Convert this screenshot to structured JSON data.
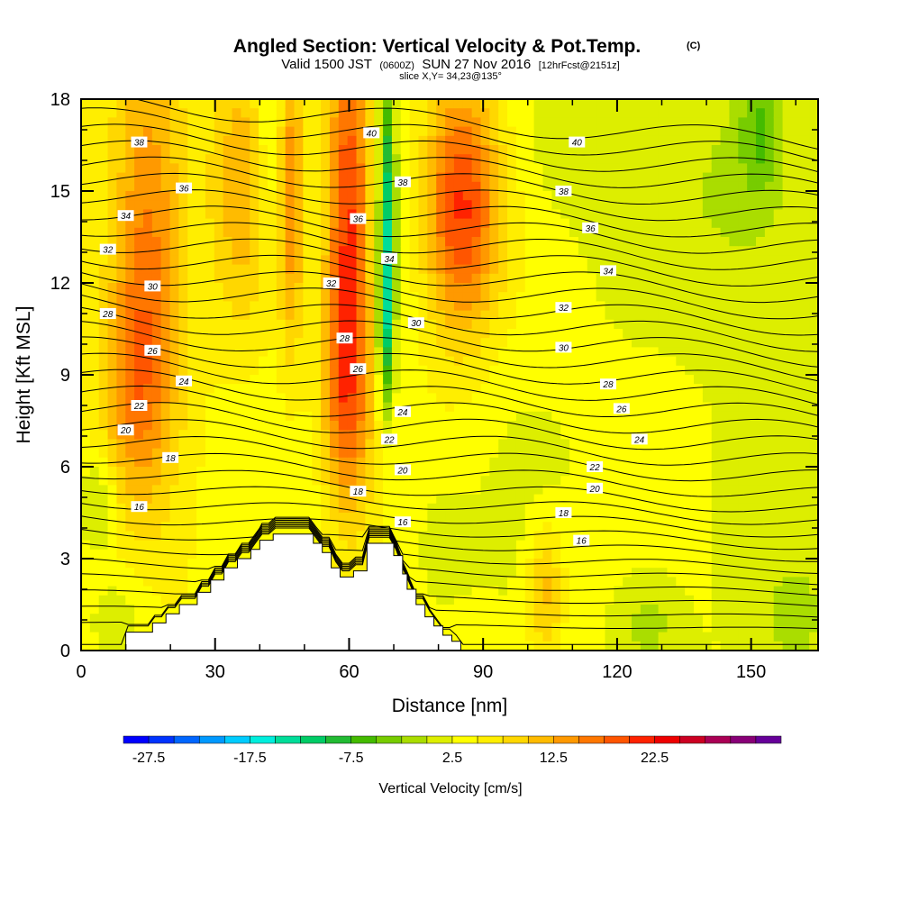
{
  "chart_data": {
    "type": "heatmap",
    "title": "Angled Section: Vertical Velocity & Pot.Temp.",
    "title_unit": "(C)",
    "subtitle": {
      "valid": "Valid 1500 JST",
      "utc": "(0600Z)",
      "date": "SUN 27 Nov 2016",
      "forecast": "[12hrFcst@2151z]"
    },
    "slice_text": "slice X,Y= 34,23@135°",
    "xlabel": "Distance [nm]",
    "ylabel": "Height [Kft MSL]",
    "xlim": [
      0,
      165
    ],
    "ylim": [
      0,
      18
    ],
    "x_ticks": [
      0,
      30,
      60,
      90,
      120,
      150
    ],
    "y_ticks": [
      0,
      3,
      6,
      9,
      12,
      15,
      18
    ],
    "colorbar": {
      "label": "Vertical Velocity [cm/s]",
      "min": -30,
      "step": 2.5,
      "tick_labels": [
        "-27.5",
        "-17.5",
        "-7.5",
        "2.5",
        "12.5",
        "22.5"
      ],
      "colors": [
        "#0000ff",
        "#0033ff",
        "#0066ff",
        "#0099ff",
        "#00ccff",
        "#00eedd",
        "#00dd99",
        "#00cc66",
        "#22bb33",
        "#44bb00",
        "#77cc00",
        "#aadd00",
        "#ddee00",
        "#ffff00",
        "#ffee00",
        "#ffd700",
        "#ffbb00",
        "#ff9900",
        "#ff7700",
        "#ff5500",
        "#ff2200",
        "#ee0000",
        "#cc0022",
        "#aa0055",
        "#880077",
        "#660099"
      ]
    },
    "terrain": [
      [
        0,
        0
      ],
      [
        10,
        0
      ],
      [
        10,
        0.6
      ],
      [
        16,
        0.6
      ],
      [
        16,
        0.9
      ],
      [
        19,
        0.9
      ],
      [
        19,
        1.2
      ],
      [
        22,
        1.2
      ],
      [
        22,
        1.5
      ],
      [
        26,
        1.5
      ],
      [
        26,
        1.9
      ],
      [
        29,
        1.9
      ],
      [
        29,
        2.3
      ],
      [
        32,
        2.3
      ],
      [
        32,
        2.7
      ],
      [
        35,
        2.7
      ],
      [
        35,
        3.0
      ],
      [
        38,
        3.0
      ],
      [
        38,
        3.3
      ],
      [
        40,
        3.3
      ],
      [
        40,
        3.6
      ],
      [
        43,
        3.6
      ],
      [
        43,
        3.8
      ],
      [
        52,
        3.8
      ],
      [
        52,
        3.5
      ],
      [
        54,
        3.5
      ],
      [
        54,
        3.2
      ],
      [
        56,
        3.2
      ],
      [
        56,
        2.7
      ],
      [
        58,
        2.7
      ],
      [
        58,
        2.4
      ],
      [
        61,
        2.4
      ],
      [
        61,
        2.6
      ],
      [
        64,
        2.6
      ],
      [
        64,
        3.5
      ],
      [
        70,
        3.5
      ],
      [
        70,
        3.1
      ],
      [
        72,
        3.1
      ],
      [
        72,
        2.5
      ],
      [
        73,
        2.5
      ],
      [
        73,
        2.0
      ],
      [
        75,
        2.0
      ],
      [
        75,
        1.5
      ],
      [
        77,
        1.5
      ],
      [
        77,
        1.1
      ],
      [
        79,
        1.1
      ],
      [
        79,
        0.8
      ],
      [
        81,
        0.8
      ],
      [
        81,
        0.5
      ],
      [
        83,
        0.5
      ],
      [
        83,
        0.3
      ],
      [
        85,
        0.3
      ],
      [
        85,
        0
      ],
      [
        165,
        0
      ]
    ],
    "vv_features": [
      {
        "x": 15,
        "z": 13.5,
        "sx": 6,
        "sz": 4.5,
        "v": 12
      },
      {
        "x": 12,
        "z": 8.5,
        "sx": 5,
        "sz": 2.5,
        "v": 7
      },
      {
        "x": 36,
        "z": 15.5,
        "sx": 5,
        "sz": 3.5,
        "v": 7
      },
      {
        "x": 42,
        "z": 16.5,
        "sx": 2.5,
        "sz": 3,
        "v": -5
      },
      {
        "x": 47,
        "z": 15,
        "sx": 2,
        "sz": 4,
        "v": 9
      },
      {
        "x": 60,
        "z": 14,
        "sx": 3.5,
        "sz": 5,
        "v": 17
      },
      {
        "x": 59,
        "z": 8,
        "sx": 4,
        "sz": 2.5,
        "v": 8
      },
      {
        "x": 68.5,
        "z": 14,
        "sx": 1.3,
        "sz": 4,
        "v": -14
      },
      {
        "x": 68,
        "z": 11,
        "sx": 1.2,
        "sz": 2,
        "v": -8
      },
      {
        "x": 85,
        "z": 14.5,
        "sx": 6,
        "sz": 3,
        "v": 17
      },
      {
        "x": 110,
        "z": 16.5,
        "sx": 9,
        "sz": 2,
        "v": -3
      },
      {
        "x": 150,
        "z": 15,
        "sx": 10,
        "sz": 3,
        "v": -4
      },
      {
        "x": 152,
        "z": 17,
        "sx": 3,
        "sz": 1.5,
        "v": -6
      },
      {
        "x": 4,
        "z": 4.8,
        "sx": 3,
        "sz": 1.2,
        "v": -6
      },
      {
        "x": 8,
        "z": 1,
        "sx": 5,
        "sz": 1.2,
        "v": -4
      },
      {
        "x": 104,
        "z": 2,
        "sx": 3,
        "sz": 1.5,
        "v": 8
      },
      {
        "x": 127,
        "z": 1,
        "sx": 5,
        "sz": 1.2,
        "v": -4
      },
      {
        "x": 160,
        "z": 1,
        "sx": 4,
        "sz": 1,
        "v": -4
      },
      {
        "x": 80,
        "z": 3.5,
        "sx": 5,
        "sz": 1.5,
        "v": -3
      }
    ],
    "contour_labels": [
      {
        "text": "38",
        "x": 13,
        "z": 16.6
      },
      {
        "text": "40",
        "x": 65,
        "z": 16.9
      },
      {
        "text": "40",
        "x": 111,
        "z": 16.6
      },
      {
        "text": "36",
        "x": 23,
        "z": 15.1
      },
      {
        "text": "38",
        "x": 72,
        "z": 15.3
      },
      {
        "text": "38",
        "x": 108,
        "z": 15.0
      },
      {
        "text": "34",
        "x": 10,
        "z": 14.2
      },
      {
        "text": "36",
        "x": 62,
        "z": 14.1
      },
      {
        "text": "36",
        "x": 114,
        "z": 13.8
      },
      {
        "text": "32",
        "x": 6,
        "z": 13.1
      },
      {
        "text": "34",
        "x": 69,
        "z": 12.8
      },
      {
        "text": "34",
        "x": 118,
        "z": 12.4
      },
      {
        "text": "30",
        "x": 16,
        "z": 11.9
      },
      {
        "text": "32",
        "x": 56,
        "z": 12.0
      },
      {
        "text": "32",
        "x": 108,
        "z": 11.2
      },
      {
        "text": "28",
        "x": 6,
        "z": 11.0
      },
      {
        "text": "30",
        "x": 75,
        "z": 10.7
      },
      {
        "text": "30",
        "x": 108,
        "z": 9.9
      },
      {
        "text": "26",
        "x": 16,
        "z": 9.8
      },
      {
        "text": "28",
        "x": 59,
        "z": 10.2
      },
      {
        "text": "28",
        "x": 118,
        "z": 8.7
      },
      {
        "text": "24",
        "x": 23,
        "z": 8.8
      },
      {
        "text": "26",
        "x": 62,
        "z": 9.2
      },
      {
        "text": "26",
        "x": 121,
        "z": 7.9
      },
      {
        "text": "22",
        "x": 13,
        "z": 8.0
      },
      {
        "text": "24",
        "x": 72,
        "z": 7.8
      },
      {
        "text": "24",
        "x": 125,
        "z": 6.9
      },
      {
        "text": "20",
        "x": 10,
        "z": 7.2
      },
      {
        "text": "22",
        "x": 69,
        "z": 6.9
      },
      {
        "text": "22",
        "x": 115,
        "z": 6.0
      },
      {
        "text": "18",
        "x": 20,
        "z": 6.3
      },
      {
        "text": "20",
        "x": 72,
        "z": 5.9
      },
      {
        "text": "20",
        "x": 115,
        "z": 5.3
      },
      {
        "text": "18",
        "x": 62,
        "z": 5.2
      },
      {
        "text": "18",
        "x": 108,
        "z": 4.5
      },
      {
        "text": "16",
        "x": 13,
        "z": 4.7
      },
      {
        "text": "16",
        "x": 72,
        "z": 4.2
      },
      {
        "text": "16",
        "x": 112,
        "z": 3.6
      }
    ]
  }
}
